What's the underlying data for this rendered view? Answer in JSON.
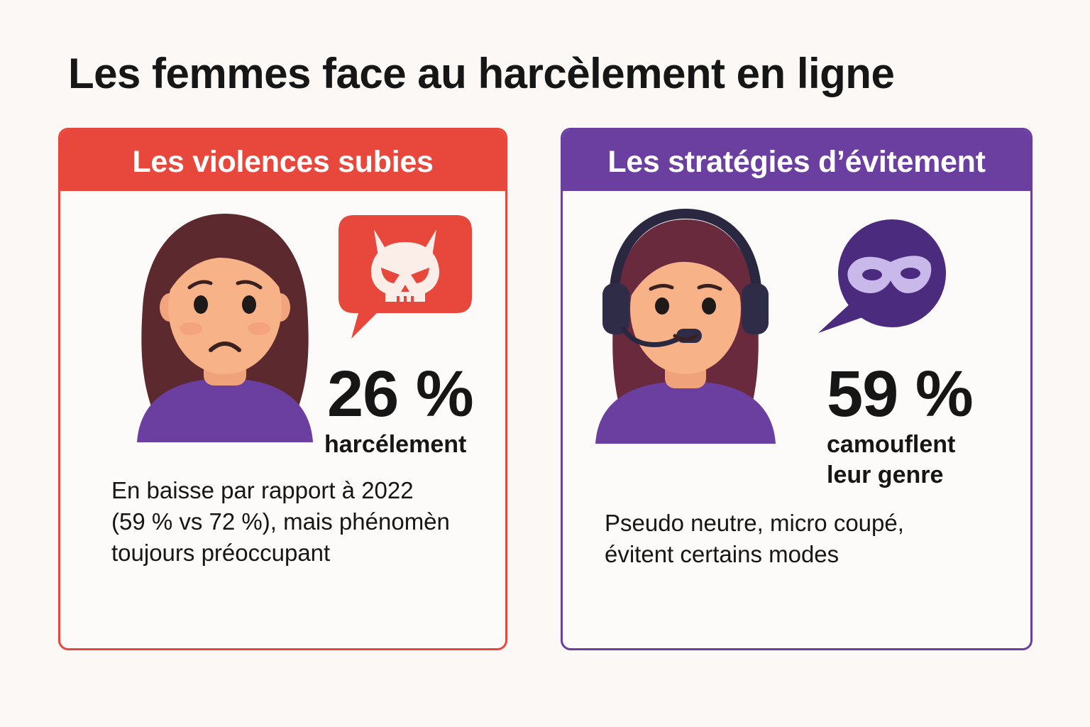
{
  "title": "Les femmes face au harcèlement en ligne",
  "colors": {
    "red": "#e8473b",
    "purple": "#6a3fa0",
    "dark_purple": "#4b2b7d",
    "text": "#161616",
    "background": "#fbf8f5"
  },
  "left_card": {
    "header": "Les violences subies",
    "stat_value": "26 %",
    "stat_label": "harcélement",
    "description_lines": [
      "En baisse par rapport à 2022",
      "(59 % vs 72 %), mais phénomèn",
      "toujours préoccupant"
    ],
    "icons": [
      "worried-woman-icon",
      "skull-speech-bubble-icon"
    ]
  },
  "right_card": {
    "header": "Les stratégies d’évitement",
    "stat_value": "59 %",
    "stat_label_lines": [
      "camouflent",
      "leur genre"
    ],
    "description_lines": [
      "Pseudo neutre, micro coupé,",
      "évitent certains modes"
    ],
    "icons": [
      "gamer-woman-headset-icon",
      "mask-speech-bubble-icon"
    ]
  }
}
